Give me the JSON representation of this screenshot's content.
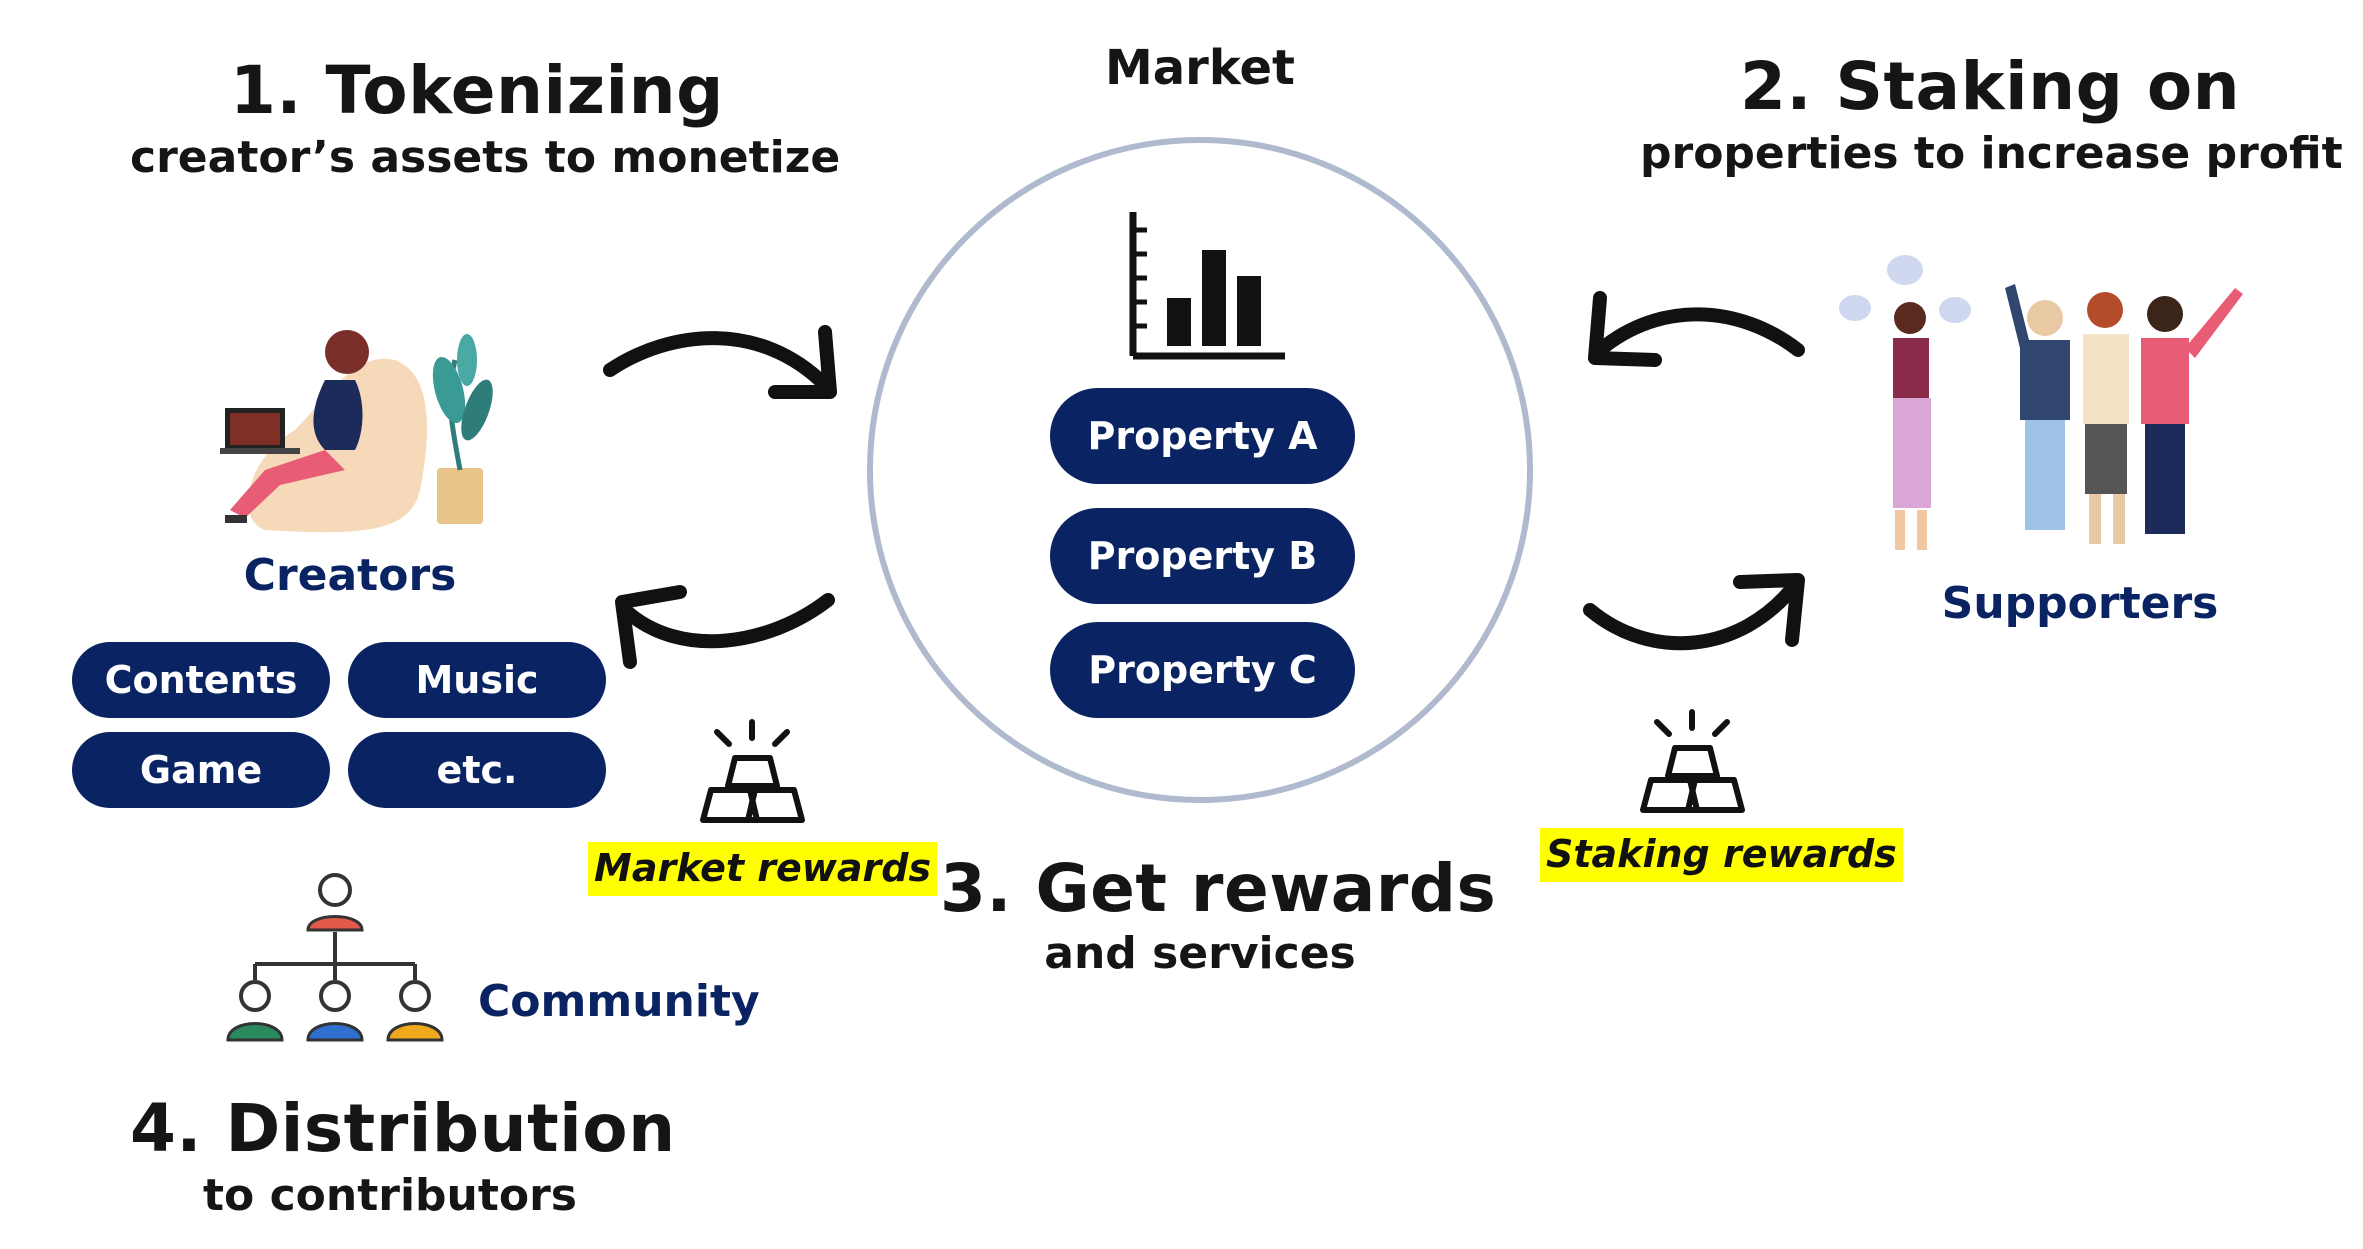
{
  "step1": {
    "title": "1. Tokenizing",
    "subtitle": "creator’s assets to monetize"
  },
  "step2": {
    "title": "2. Staking on",
    "subtitle": "properties to increase profit"
  },
  "step3": {
    "title": "3. Get rewards",
    "subtitle": "and services"
  },
  "step4": {
    "title": "4. Distribution",
    "subtitle": "to contributors"
  },
  "market": {
    "label": "Market",
    "icon": "bar-chart-icon",
    "properties": [
      "Property A",
      "Property B",
      "Property C"
    ]
  },
  "creators": {
    "label": "Creators",
    "icon": "creator-illustration",
    "tags": [
      "Contents",
      "Music",
      "Game",
      "etc."
    ]
  },
  "supporters": {
    "label": "Supporters",
    "icon": "supporters-illustration"
  },
  "community": {
    "label": "Community",
    "icon": "org-chart-icon"
  },
  "rewards": {
    "market": "Market rewards",
    "staking": "Staking rewards",
    "icon": "gold-bars-icon"
  },
  "colors": {
    "navy": "#0a2463",
    "highlight": "#ffff00",
    "circle": "#b0bace"
  }
}
